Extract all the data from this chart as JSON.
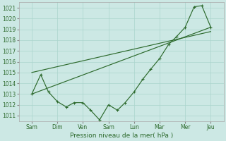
{
  "bg_color": "#cce8e4",
  "grid_color": "#aad4cc",
  "line_color": "#2d6a2d",
  "xlabel": "Pression niveau de la mer( hPa )",
  "ylim": [
    1010.5,
    1021.5
  ],
  "yticks": [
    1011,
    1012,
    1013,
    1014,
    1015,
    1016,
    1017,
    1018,
    1019,
    1020,
    1021
  ],
  "xtick_labels": [
    "Sam",
    "Dim",
    "Ven",
    "Sam",
    "Lun",
    "Mar",
    "Mer",
    "Jeu"
  ],
  "xtick_positions": [
    0,
    1,
    2,
    3,
    4,
    5,
    6,
    7
  ],
  "xlim": [
    -0.5,
    7.5
  ],
  "straight_line1": {
    "x": [
      0,
      7
    ],
    "y": [
      1013.0,
      1019.2
    ]
  },
  "straight_line2": {
    "x": [
      0,
      7
    ],
    "y": [
      1015.0,
      1018.8
    ]
  },
  "zigzag_x": [
    0,
    0.35,
    0.65,
    1.0,
    1.35,
    1.65,
    2.0,
    2.3,
    2.65,
    3.0,
    3.35,
    3.65,
    4.0,
    4.35,
    4.65,
    5.0,
    5.35,
    5.65,
    6.0,
    6.35,
    6.65,
    7.0
  ],
  "zigzag_y": [
    1013.0,
    1014.8,
    1013.2,
    1012.3,
    1011.8,
    1012.2,
    1012.2,
    1011.5,
    1010.6,
    1012.0,
    1011.5,
    1012.2,
    1013.2,
    1014.4,
    1015.3,
    1016.3,
    1017.6,
    1018.3,
    1019.2,
    1021.1,
    1021.2,
    1019.2
  ],
  "figsize": [
    3.2,
    2.0
  ],
  "dpi": 100
}
